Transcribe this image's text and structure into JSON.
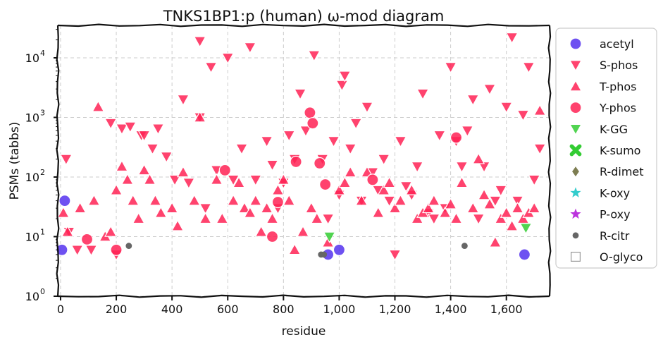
{
  "chart_data": {
    "type": "scatter",
    "title": "TNKS1BP1:p (human) ω-mod diagram",
    "xlabel": "residue",
    "ylabel": "PSMs (tabbs)",
    "xlim": [
      -10,
      1755
    ],
    "ylim": [
      1,
      35000
    ],
    "yscale": "log",
    "grid": true,
    "legend_position": "right",
    "x_ticks": [
      {
        "value": 0,
        "label": "0"
      },
      {
        "value": 200,
        "label": "200"
      },
      {
        "value": 400,
        "label": "400"
      },
      {
        "value": 600,
        "label": "600"
      },
      {
        "value": 800,
        "label": "800"
      },
      {
        "value": 1000,
        "label": "1,000"
      },
      {
        "value": 1200,
        "label": "1,200"
      },
      {
        "value": 1400,
        "label": "1,400"
      },
      {
        "value": 1600,
        "label": "1,600"
      }
    ],
    "y_ticks": [
      {
        "value": 1,
        "base": "10",
        "exp": "0"
      },
      {
        "value": 10,
        "base": "10",
        "exp": "1"
      },
      {
        "value": 100,
        "base": "10",
        "exp": "2"
      },
      {
        "value": 1000,
        "base": "10",
        "exp": "3"
      },
      {
        "value": 10000,
        "base": "10",
        "exp": "4"
      }
    ],
    "series": [
      {
        "name": "acetyl",
        "marker": "circle",
        "color": "#5533ee",
        "points": [
          [
            5,
            6
          ],
          [
            15,
            40
          ],
          [
            960,
            5
          ],
          [
            1000,
            6
          ],
          [
            1665,
            5
          ]
        ]
      },
      {
        "name": "S-phos",
        "marker": "triangle-down",
        "color": "#ff2255",
        "points": [
          [
            20,
            200
          ],
          [
            30,
            12
          ],
          [
            60,
            6
          ],
          [
            110,
            6
          ],
          [
            180,
            800
          ],
          [
            200,
            5
          ],
          [
            220,
            650
          ],
          [
            250,
            700
          ],
          [
            290,
            500
          ],
          [
            300,
            500
          ],
          [
            330,
            300
          ],
          [
            350,
            650
          ],
          [
            380,
            220
          ],
          [
            410,
            90
          ],
          [
            440,
            2000
          ],
          [
            460,
            80
          ],
          [
            500,
            1000
          ],
          [
            500,
            19000
          ],
          [
            520,
            30
          ],
          [
            540,
            7000
          ],
          [
            560,
            130
          ],
          [
            600,
            10000
          ],
          [
            620,
            90
          ],
          [
            650,
            300
          ],
          [
            680,
            15000
          ],
          [
            700,
            90
          ],
          [
            740,
            400
          ],
          [
            760,
            160
          ],
          [
            780,
            30
          ],
          [
            800,
            80
          ],
          [
            820,
            500
          ],
          [
            840,
            200
          ],
          [
            860,
            2500
          ],
          [
            880,
            600
          ],
          [
            910,
            11000
          ],
          [
            940,
            200
          ],
          [
            960,
            20
          ],
          [
            980,
            400
          ],
          [
            1000,
            50
          ],
          [
            1010,
            3500
          ],
          [
            1020,
            5000
          ],
          [
            1040,
            300
          ],
          [
            1060,
            800
          ],
          [
            1080,
            40
          ],
          [
            1100,
            1500
          ],
          [
            1120,
            120
          ],
          [
            1140,
            60
          ],
          [
            1160,
            200
          ],
          [
            1180,
            40
          ],
          [
            1200,
            5
          ],
          [
            1220,
            400
          ],
          [
            1240,
            70
          ],
          [
            1260,
            50
          ],
          [
            1280,
            150
          ],
          [
            1300,
            2500
          ],
          [
            1320,
            25
          ],
          [
            1340,
            20
          ],
          [
            1360,
            500
          ],
          [
            1380,
            30
          ],
          [
            1400,
            7000
          ],
          [
            1420,
            400
          ],
          [
            1440,
            150
          ],
          [
            1460,
            600
          ],
          [
            1480,
            2000
          ],
          [
            1500,
            20
          ],
          [
            1520,
            150
          ],
          [
            1540,
            3000
          ],
          [
            1560,
            40
          ],
          [
            1580,
            60
          ],
          [
            1600,
            1500
          ],
          [
            1620,
            22000
          ],
          [
            1640,
            40
          ],
          [
            1660,
            1100
          ],
          [
            1680,
            7000
          ],
          [
            1700,
            90
          ],
          [
            1720,
            300
          ]
        ]
      },
      {
        "name": "T-phos",
        "marker": "triangle-up",
        "color": "#ff2255",
        "points": [
          [
            10,
            25
          ],
          [
            25,
            12
          ],
          [
            70,
            30
          ],
          [
            120,
            40
          ],
          [
            135,
            1500
          ],
          [
            160,
            10
          ],
          [
            180,
            12
          ],
          [
            200,
            60
          ],
          [
            220,
            150
          ],
          [
            240,
            90
          ],
          [
            260,
            40
          ],
          [
            280,
            20
          ],
          [
            300,
            130
          ],
          [
            320,
            90
          ],
          [
            340,
            40
          ],
          [
            360,
            25
          ],
          [
            400,
            30
          ],
          [
            420,
            15
          ],
          [
            440,
            120
          ],
          [
            480,
            40
          ],
          [
            500,
            1000
          ],
          [
            520,
            20
          ],
          [
            560,
            90
          ],
          [
            580,
            20
          ],
          [
            620,
            40
          ],
          [
            640,
            80
          ],
          [
            660,
            30
          ],
          [
            680,
            25
          ],
          [
            700,
            40
          ],
          [
            720,
            12
          ],
          [
            740,
            30
          ],
          [
            760,
            20
          ],
          [
            780,
            60
          ],
          [
            800,
            90
          ],
          [
            820,
            40
          ],
          [
            840,
            6
          ],
          [
            870,
            12
          ],
          [
            900,
            30
          ],
          [
            920,
            20
          ],
          [
            960,
            8
          ],
          [
            1000,
            60
          ],
          [
            1020,
            80
          ],
          [
            1040,
            120
          ],
          [
            1080,
            40
          ],
          [
            1100,
            120
          ],
          [
            1140,
            25
          ],
          [
            1160,
            60
          ],
          [
            1180,
            80
          ],
          [
            1200,
            30
          ],
          [
            1220,
            40
          ],
          [
            1260,
            60
          ],
          [
            1280,
            20
          ],
          [
            1300,
            25
          ],
          [
            1320,
            30
          ],
          [
            1340,
            40
          ],
          [
            1380,
            25
          ],
          [
            1400,
            35
          ],
          [
            1420,
            20
          ],
          [
            1440,
            80
          ],
          [
            1480,
            30
          ],
          [
            1500,
            200
          ],
          [
            1520,
            50
          ],
          [
            1540,
            35
          ],
          [
            1560,
            8
          ],
          [
            1580,
            20
          ],
          [
            1600,
            25
          ],
          [
            1620,
            15
          ],
          [
            1640,
            30
          ],
          [
            1660,
            20
          ],
          [
            1680,
            25
          ],
          [
            1700,
            30
          ],
          [
            1720,
            1300
          ]
        ]
      },
      {
        "name": "Y-phos",
        "marker": "circle",
        "color": "#ff2255",
        "points": [
          [
            95,
            9
          ],
          [
            200,
            6
          ],
          [
            590,
            130
          ],
          [
            760,
            10
          ],
          [
            780,
            38
          ],
          [
            845,
            180
          ],
          [
            895,
            1200
          ],
          [
            905,
            800
          ],
          [
            930,
            170
          ],
          [
            950,
            75
          ],
          [
            1120,
            90
          ],
          [
            1420,
            460
          ]
        ]
      },
      {
        "name": "K-GG",
        "marker": "triangle-down",
        "color": "#33cc33",
        "points": [
          [
            965,
            10
          ],
          [
            1670,
            14
          ]
        ]
      },
      {
        "name": "K-sumo",
        "marker": "x",
        "color": "#33cc33",
        "points": []
      },
      {
        "name": "R-dimet",
        "marker": "diamond",
        "color": "#666633",
        "points": []
      },
      {
        "name": "K-oxy",
        "marker": "star",
        "color": "#33cccc",
        "points": []
      },
      {
        "name": "P-oxy",
        "marker": "star",
        "color": "#bb33dd",
        "points": []
      },
      {
        "name": "R-citr",
        "marker": "dot",
        "color": "#666666",
        "points": [
          [
            245,
            7
          ],
          [
            935,
            5
          ],
          [
            945,
            5
          ],
          [
            1450,
            7
          ]
        ]
      },
      {
        "name": "O-glyco",
        "marker": "square-open",
        "color": "#999999",
        "points": []
      }
    ]
  }
}
